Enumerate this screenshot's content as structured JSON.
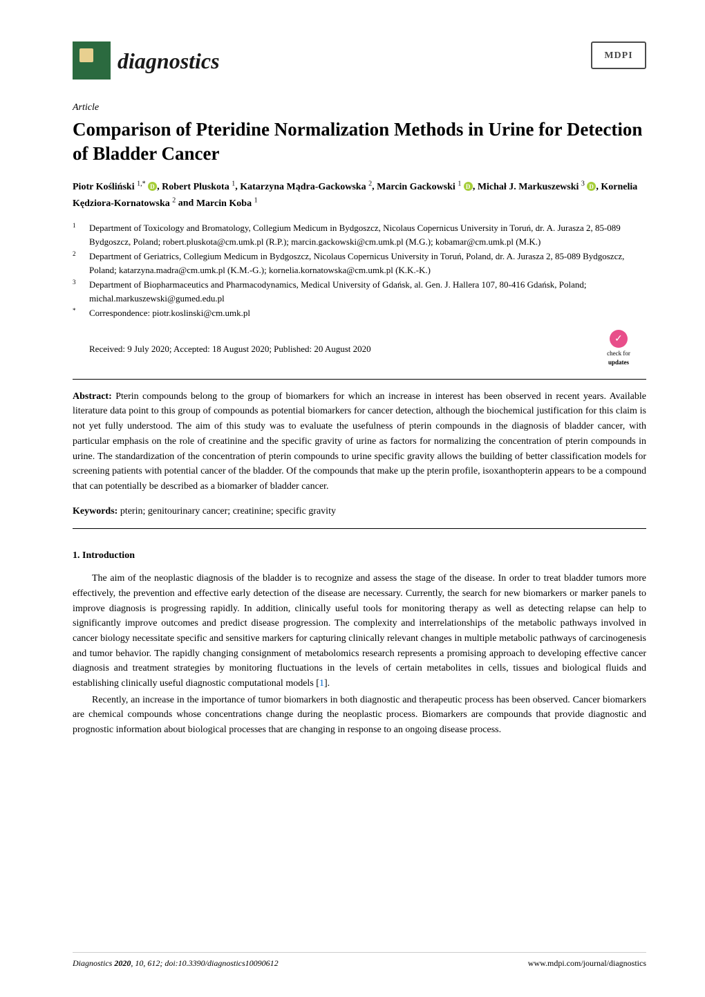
{
  "header": {
    "journal_name": "diagnostics",
    "publisher": "MDPI"
  },
  "article_type": "Article",
  "title": "Comparison of Pteridine Normalization Methods in Urine for Detection of Bladder Cancer",
  "authors_html": "Piotr Kośliński <sup>1,</sup>*, Robert Pluskota <sup>1</sup>, Katarzyna Mądra-Gackowska <sup>2</sup>, Marcin Gackowski <sup>1</sup>, Michał J. Markuszewski <sup>3</sup>, Kornelia Kędziora-Kornatowska <sup>2</sup> and Marcin Koba <sup>1</sup>",
  "authors": [
    {
      "name": "Piotr Kośliński",
      "sup": "1,*",
      "orcid": true
    },
    {
      "name": "Robert Pluskota",
      "sup": "1",
      "orcid": false
    },
    {
      "name": "Katarzyna Mądra-Gackowska",
      "sup": "2",
      "orcid": false
    },
    {
      "name": "Marcin Gackowski",
      "sup": "1",
      "orcid": true
    },
    {
      "name": "Michał J. Markuszewski",
      "sup": "3",
      "orcid": true
    },
    {
      "name": "Kornelia Kędziora-Kornatowska",
      "sup": "2",
      "orcid": false
    },
    {
      "name": "Marcin Koba",
      "sup": "1",
      "orcid": false
    }
  ],
  "affiliations": [
    {
      "num": "1",
      "text": "Department of Toxicology and Bromatology, Collegium Medicum in Bydgoszcz, Nicolaus Copernicus University in Toruń, dr. A. Jurasza 2, 85-089 Bydgoszcz, Poland; robert.pluskota@cm.umk.pl (R.P.); marcin.gackowski@cm.umk.pl (M.G.); kobamar@cm.umk.pl (M.K.)"
    },
    {
      "num": "2",
      "text": "Department of Geriatrics, Collegium Medicum in Bydgoszcz, Nicolaus Copernicus University in Toruń, Poland, dr. A. Jurasza 2, 85-089 Bydgoszcz, Poland; katarzyna.madra@cm.umk.pl (K.M.-G.); kornelia.kornatowska@cm.umk.pl (K.K.-K.)"
    },
    {
      "num": "3",
      "text": "Department of Biopharmaceutics and Pharmacodynamics, Medical University of Gdańsk, al. Gen. J. Hallera 107, 80-416 Gdańsk, Poland; michal.markuszewski@gumed.edu.pl"
    },
    {
      "num": "*",
      "text": "Correspondence: piotr.koslinski@cm.umk.pl"
    }
  ],
  "dates": "Received: 9 July 2020; Accepted: 18 August 2020; Published: 20 August 2020",
  "check_updates": {
    "line1": "check for",
    "line2": "updates"
  },
  "abstract_label": "Abstract:",
  "abstract": "Pterin compounds belong to the group of biomarkers for which an increase in interest has been observed in recent years. Available literature data point to this group of compounds as potential biomarkers for cancer detection, although the biochemical justification for this claim is not yet fully understood. The aim of this study was to evaluate the usefulness of pterin compounds in the diagnosis of bladder cancer, with particular emphasis on the role of creatinine and the specific gravity of urine as factors for normalizing the concentration of pterin compounds in urine. The standardization of the concentration of pterin compounds to urine specific gravity allows the building of better classification models for screening patients with potential cancer of the bladder. Of the compounds that make up the pterin profile, isoxanthopterin appears to be a compound that can potentially be described as a biomarker of bladder cancer.",
  "keywords_label": "Keywords:",
  "keywords": "pterin; genitourinary cancer; creatinine; specific gravity",
  "section1_heading": "1. Introduction",
  "para1": "The aim of the neoplastic diagnosis of the bladder is to recognize and assess the stage of the disease. In order to treat bladder tumors more effectively, the prevention and effective early detection of the disease are necessary. Currently, the search for new biomarkers or marker panels to improve diagnosis is progressing rapidly. In addition, clinically useful tools for monitoring therapy as well as detecting relapse can help to significantly improve outcomes and predict disease progression. The complexity and interrelationships of the metabolic pathways involved in cancer biology necessitate specific and sensitive markers for capturing clinically relevant changes in multiple metabolic pathways of carcinogenesis and tumor behavior. The rapidly changing consignment of metabolomics research represents a promising approach to developing effective cancer diagnosis and treatment strategies by monitoring fluctuations in the levels of certain metabolites in cells, tissues and biological fluids and establishing clinically useful diagnostic computational models [",
  "para1_ref": "1",
  "para1_end": "].",
  "para2": "Recently, an increase in the importance of tumor biomarkers in both diagnostic and therapeutic process has been observed. Cancer biomarkers are chemical compounds whose concentrations change during the neoplastic process. Biomarkers are compounds that provide diagnostic and prognostic information about biological processes that are changing in response to an ongoing disease process.",
  "footer": {
    "journal": "Diagnostics",
    "year_vol": "2020, 10, 612; doi:10.3390/diagnostics10090612",
    "url": "www.mdpi.com/journal/diagnostics"
  },
  "colors": {
    "orcid_green": "#a6ce39",
    "logo_green": "#2b6a3f",
    "check_pink": "#e84e8a",
    "link_blue": "#0066cc"
  }
}
